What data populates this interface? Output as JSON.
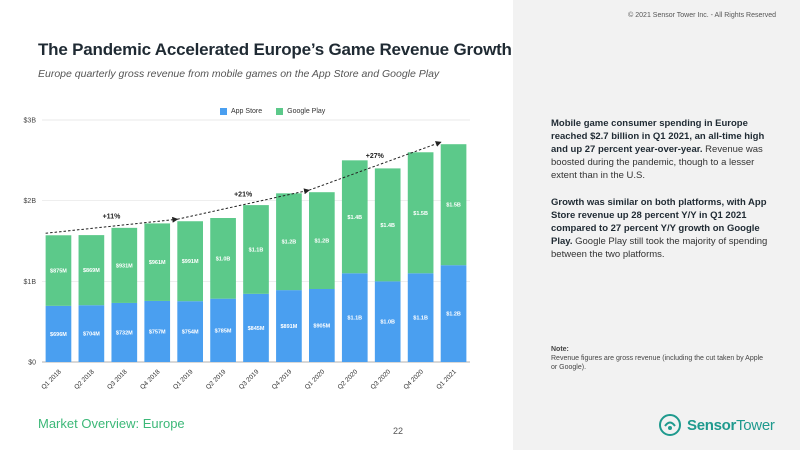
{
  "copyright": "© 2021 Sensor Tower Inc. - All Rights Reserved",
  "title": "The Pandemic Accelerated Europe’s Game Revenue Growth",
  "subtitle": "Europe quarterly gross revenue from mobile games on the App Store and Google Play",
  "footer": {
    "section": "Market Overview: Europe",
    "page": "22",
    "logo_bold": "Sensor",
    "logo_rest": "Tower"
  },
  "colors": {
    "app_store": "#4a9ff0",
    "google_play": "#5cc98a",
    "accent": "#3cb878"
  },
  "callouts": {
    "p1_bold": "Mobile game consumer spending in Europe reached $2.7 billion in Q1 2021, an all-time high and up 27 percent year-over-year.",
    "p1_rest": " Revenue was boosted during the pandemic, though to a lesser extent than in the U.S.",
    "p2_bold": "Growth was similar on both platforms, with App Store revenue up 28 percent Y/Y in Q1 2021 compared to 27 percent Y/Y growth on Google Play.",
    "p2_rest": " Google Play still took the majority of spending between the two platforms."
  },
  "note": {
    "title": "Note:",
    "text": "Revenue figures are gross revenue (including the cut taken by Apple or Google)."
  },
  "chart_data": {
    "type": "bar",
    "stacked": true,
    "categories": [
      "Q1 2018",
      "Q2 2018",
      "Q3 2018",
      "Q4 2018",
      "Q1 2019",
      "Q2 2019",
      "Q3 2019",
      "Q4 2019",
      "Q1 2020",
      "Q2 2020",
      "Q3 2020",
      "Q4 2020",
      "Q1 2021"
    ],
    "series": [
      {
        "name": "App Store",
        "values": [
          0.696,
          0.704,
          0.732,
          0.757,
          0.754,
          0.785,
          0.845,
          0.891,
          0.905,
          1.1,
          1.0,
          1.1,
          1.2
        ],
        "labels": [
          "$696M",
          "$704M",
          "$732M",
          "$757M",
          "$754M",
          "$785M",
          "$845M",
          "$891M",
          "$905M",
          "$1.1B",
          "$1.0B",
          "$1.1B",
          "$1.2B"
        ]
      },
      {
        "name": "Google Play",
        "values": [
          0.875,
          0.869,
          0.931,
          0.961,
          0.991,
          1.0,
          1.1,
          1.2,
          1.2,
          1.4,
          1.4,
          1.5,
          1.5
        ],
        "labels": [
          "$875M",
          "$869M",
          "$931M",
          "$961M",
          "$991M",
          "$1.0B",
          "$1.1B",
          "$1.2B",
          "$1.2B",
          "$1.4B",
          "$1.4B",
          "$1.5B",
          "$1.5B"
        ]
      }
    ],
    "yticks": [
      "$0",
      "$1B",
      "$2B",
      "$3B"
    ],
    "ylim": [
      0,
      3
    ],
    "growth_annotations": [
      {
        "from": 0,
        "to": 4,
        "label": "+11%"
      },
      {
        "from": 4,
        "to": 8,
        "label": "+21%"
      },
      {
        "from": 8,
        "to": 12,
        "label": "+27%"
      }
    ],
    "legend": "top-center"
  }
}
